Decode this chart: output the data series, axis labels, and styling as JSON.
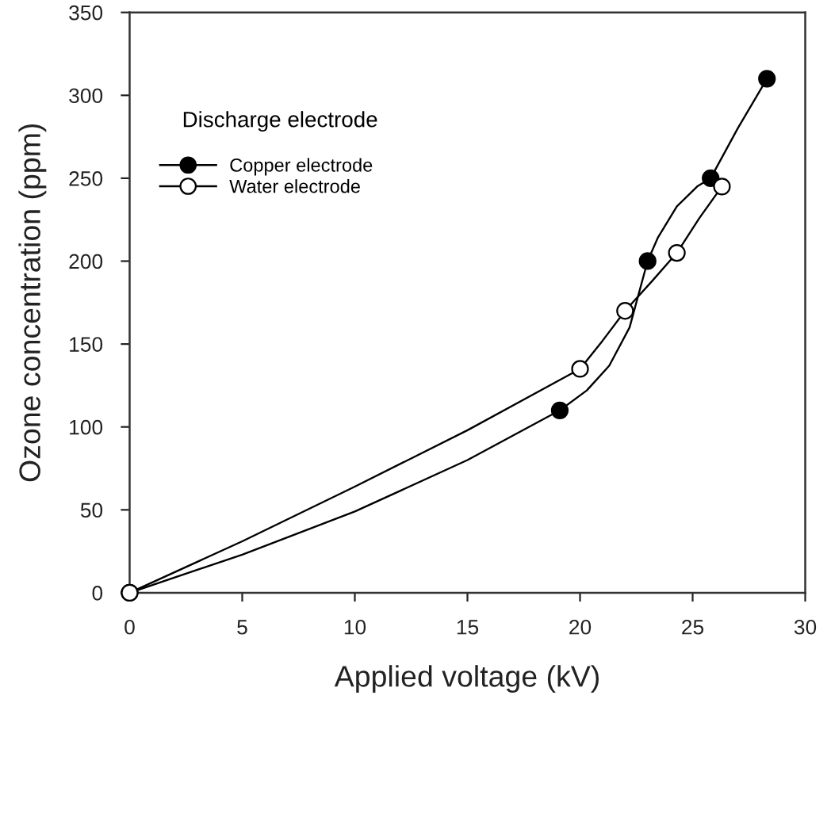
{
  "chart_data": {
    "type": "line",
    "xlabel": "Applied voltage (kV)",
    "ylabel": "Ozone concentration (ppm)",
    "legend_title": "Discharge electrode",
    "legend": "top left",
    "marker": "circle",
    "line_style": "solid",
    "grid": false,
    "xlim": [
      0,
      30
    ],
    "xticks": [
      0,
      5,
      10,
      15,
      20,
      25,
      30
    ],
    "ylim": [
      0,
      350
    ],
    "yticks": [
      0,
      50,
      100,
      150,
      200,
      250,
      300,
      350
    ],
    "series": [
      {
        "marker": "none",
        "color": "#000000",
        "x": [
          0,
          5,
          10,
          15,
          19.1,
          20.3,
          21.3,
          22.2,
          23.0,
          23.45,
          24.3,
          25.2,
          25.8,
          27.0,
          28.3
        ],
        "values": [
          0,
          23,
          49,
          80,
          110,
          122,
          137,
          160,
          200,
          214,
          233,
          245,
          250,
          280,
          310
        ]
      },
      {
        "marker": "none",
        "color": "#000000",
        "x": [
          0,
          5,
          10,
          15,
          20.0,
          21.0,
          22.0,
          23.2,
          24.3,
          25.3,
          26.3
        ],
        "values": [
          0,
          31,
          64,
          98,
          135,
          152,
          170,
          188,
          205,
          226,
          245
        ]
      },
      {
        "type": "scatter",
        "name": "Copper electrode",
        "color": "#000000",
        "x": [
          0,
          19.1,
          23.0,
          25.8,
          28.3
        ],
        "values": [
          0,
          110,
          200,
          250,
          310
        ]
      },
      {
        "type": "scatter",
        "name": "Water electrode",
        "color": "#ffffff",
        "x": [
          0,
          20.0,
          22.0,
          24.3,
          26.3
        ],
        "values": [
          0,
          135,
          170,
          205,
          245
        ]
      }
    ]
  }
}
